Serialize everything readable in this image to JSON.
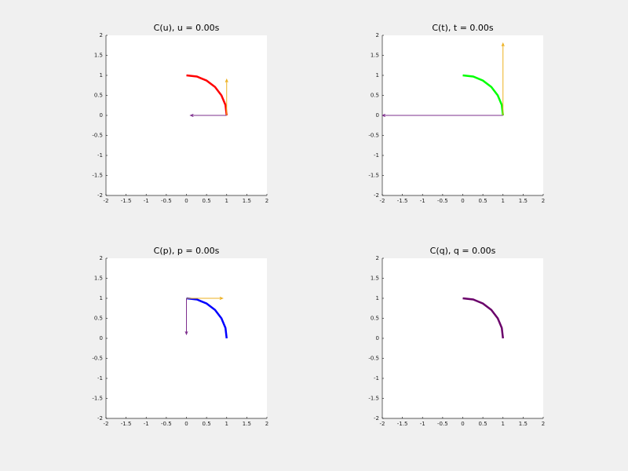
{
  "chart_data": [
    {
      "type": "line",
      "title": "C(u), u = 0.00s",
      "series": [
        {
          "color": "#ff0000",
          "x": [
            1,
            0.97,
            0.87,
            0.71,
            0.5,
            0.26,
            0
          ],
          "values": [
            0,
            0.26,
            0.5,
            0.71,
            0.87,
            0.97,
            1
          ]
        }
      ],
      "vectors": [
        {
          "color": "#edb120",
          "x": 1,
          "y": 0,
          "u": 0,
          "v": 0.9
        },
        {
          "color": "#7e2f8e",
          "x": 1,
          "y": 0,
          "u": -0.9,
          "v": 0
        }
      ],
      "xlim": [
        -2,
        2
      ],
      "ylim": [
        -2,
        2
      ],
      "xticks": [
        -2,
        -1.5,
        -1,
        -0.5,
        0,
        0.5,
        1,
        1.5,
        2
      ],
      "yticks": [
        -2,
        -1.5,
        -1,
        -0.5,
        0,
        0.5,
        1,
        1.5,
        2
      ],
      "grid": false
    },
    {
      "type": "line",
      "title": "C(t), t = 0.00s",
      "series": [
        {
          "color": "#00ff00",
          "x": [
            1,
            0.97,
            0.87,
            0.71,
            0.5,
            0.26,
            0
          ],
          "values": [
            0,
            0.26,
            0.5,
            0.71,
            0.87,
            0.97,
            1
          ]
        }
      ],
      "vectors": [
        {
          "color": "#edb120",
          "x": 1,
          "y": 0,
          "u": 0,
          "v": 1.8
        },
        {
          "color": "#7e2f8e",
          "x": 1,
          "y": 0,
          "u": -3,
          "v": 0
        }
      ],
      "xlim": [
        -2,
        2
      ],
      "ylim": [
        -2,
        2
      ],
      "xticks": [
        -2,
        -1.5,
        -1,
        -0.5,
        0,
        0.5,
        1,
        1.5,
        2
      ],
      "yticks": [
        -2,
        -1.5,
        -1,
        -0.5,
        0,
        0.5,
        1,
        1.5,
        2
      ],
      "grid": false
    },
    {
      "type": "line",
      "title": "C(p), p = 0.00s",
      "series": [
        {
          "color": "#0000ff",
          "x": [
            1,
            0.97,
            0.87,
            0.71,
            0.5,
            0.26,
            0
          ],
          "values": [
            0,
            0.26,
            0.5,
            0.71,
            0.87,
            0.97,
            1
          ]
        }
      ],
      "vectors": [
        {
          "color": "#edb120",
          "x": 0,
          "y": 1,
          "u": 0.9,
          "v": 0
        },
        {
          "color": "#7e2f8e",
          "x": 0,
          "y": 1,
          "u": 0,
          "v": -0.9
        }
      ],
      "xlim": [
        -2,
        2
      ],
      "ylim": [
        -2,
        2
      ],
      "xticks": [
        -2,
        -1.5,
        -1,
        -0.5,
        0,
        0.5,
        1,
        1.5,
        2
      ],
      "yticks": [
        -2,
        -1.5,
        -1,
        -0.5,
        0,
        0.5,
        1,
        1.5,
        2
      ],
      "grid": false
    },
    {
      "type": "line",
      "title": "C(q), q = 0.00s",
      "series": [
        {
          "color": "#6a006a",
          "x": [
            1,
            0.97,
            0.87,
            0.71,
            0.5,
            0.26,
            0
          ],
          "values": [
            0,
            0.26,
            0.5,
            0.71,
            0.87,
            0.97,
            1
          ]
        }
      ],
      "vectors": [],
      "xlim": [
        -2,
        2
      ],
      "ylim": [
        -2,
        2
      ],
      "xticks": [
        -2,
        -1.5,
        -1,
        -0.5,
        0,
        0.5,
        1,
        1.5,
        2
      ],
      "yticks": [
        -2,
        -1.5,
        -1,
        -0.5,
        0,
        0.5,
        1,
        1.5,
        2
      ],
      "grid": false
    }
  ]
}
